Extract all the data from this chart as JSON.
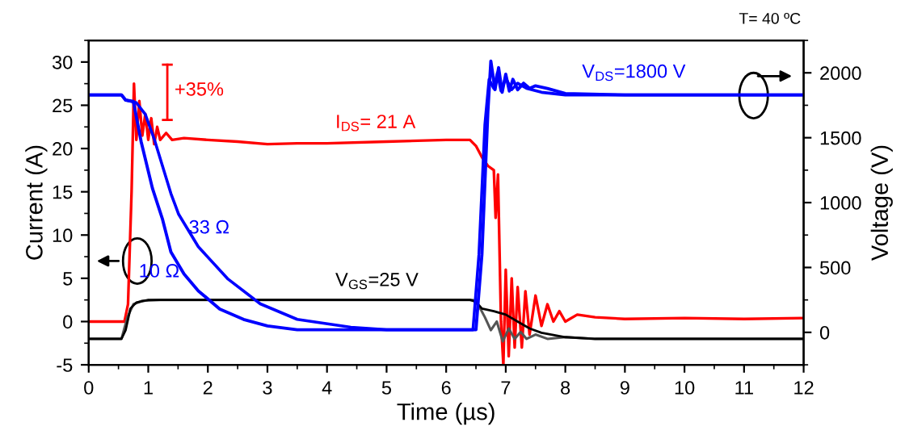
{
  "chart_data": {
    "type": "line",
    "xlabel": "Time (µs)",
    "ylabel": "Current (A)",
    "y2label": "Voltage (V)",
    "xlim": [
      0,
      12
    ],
    "xticks": [
      0,
      1,
      2,
      3,
      4,
      5,
      6,
      7,
      8,
      9,
      10,
      11,
      12
    ],
    "ylim": [
      -5,
      32.5
    ],
    "yticks": [
      -5,
      0,
      5,
      10,
      15,
      20,
      25,
      30
    ],
    "y2lim": [
      -250,
      2250
    ],
    "y2ticks": [
      0,
      500,
      1000,
      1500,
      2000
    ],
    "grid": false,
    "legend": false,
    "marker": "none",
    "line_style": "solid",
    "series": [
      {
        "color": "#0000ff",
        "axis": "y2",
        "x": [
          0,
          0.55,
          0.62,
          0.75,
          0.88,
          1.07,
          1.24,
          1.38,
          1.6,
          1.84,
          2.2,
          2.6,
          3.0,
          3.5,
          4,
          5,
          6,
          6.5,
          6.6,
          6.7,
          6.75,
          6.82,
          6.88,
          6.94,
          7.0,
          7.06,
          7.12,
          7.2,
          7.3,
          7.4,
          7.5,
          7.7,
          8,
          9,
          10,
          11,
          12
        ],
        "values": [
          1830,
          1830,
          1790,
          1780,
          1470,
          1110,
          870,
          620,
          450,
          320,
          180,
          100,
          50,
          20,
          20,
          20,
          20,
          20,
          600,
          1700,
          2090,
          1870,
          2040,
          1850,
          1990,
          1860,
          1950,
          1870,
          1920,
          1880,
          1900,
          1880,
          1840,
          1830,
          1830,
          1830,
          1830
        ]
      },
      {
        "color": "#0000ff",
        "axis": "y2",
        "x": [
          0,
          0.55,
          0.62,
          0.8,
          0.95,
          1.1,
          1.38,
          1.51,
          1.84,
          2.34,
          2.88,
          3.5,
          4.4,
          5,
          6,
          6.45,
          6.55,
          6.65,
          6.72,
          6.8,
          6.86,
          6.92,
          7.0,
          7.1,
          7.2,
          7.35,
          7.6,
          8,
          12
        ],
        "values": [
          1830,
          1830,
          1790,
          1770,
          1680,
          1490,
          1070,
          910,
          660,
          410,
          220,
          100,
          40,
          20,
          20,
          20,
          600,
          1600,
          1950,
          1880,
          2000,
          1860,
          1960,
          1870,
          1920,
          1880,
          1850,
          1830,
          1830
        ]
      },
      {
        "color": "#ff0000",
        "x": [
          0,
          0.6,
          0.66,
          0.72,
          0.76,
          0.8,
          0.85,
          0.9,
          0.95,
          1.0,
          1.05,
          1.1,
          1.15,
          1.2,
          1.3,
          1.4,
          1.6,
          2,
          2.5,
          3,
          3.5,
          4,
          5,
          6,
          6.4,
          6.5,
          6.6,
          6.7,
          6.8,
          6.83,
          6.87,
          6.92,
          6.96,
          7.0,
          7.05,
          7.1,
          7.15,
          7.2,
          7.27,
          7.33,
          7.4,
          7.5,
          7.6,
          7.7,
          7.8,
          7.9,
          8.0,
          8.2,
          8.5,
          9,
          10,
          11,
          12
        ],
        "values": [
          0,
          0,
          2,
          15,
          27.5,
          21,
          25.5,
          21.5,
          24,
          21,
          23.5,
          20.5,
          22.5,
          21,
          21.8,
          21,
          21.2,
          21,
          20.8,
          20.5,
          20.6,
          20.6,
          20.8,
          21,
          21,
          20.3,
          19,
          18,
          17.5,
          12,
          17,
          0,
          -5,
          6,
          -4,
          5,
          -3,
          4,
          -3,
          3.5,
          -1.5,
          3,
          -0.5,
          2,
          0,
          1.2,
          0,
          0.8,
          0.5,
          0.3,
          0.4,
          0.3,
          0.4
        ]
      },
      {
        "color": "#555555",
        "x": [
          0,
          0.55,
          0.65,
          0.75,
          0.9,
          1.2,
          6.45,
          6.55,
          6.65,
          6.75,
          6.85,
          6.95,
          7.05,
          7.15,
          7.25,
          7.35,
          7.5,
          7.7,
          8,
          8.5,
          12
        ],
        "values": [
          -2,
          -2,
          0.5,
          2,
          2.4,
          2.5,
          2.5,
          1.8,
          0.5,
          -1,
          0,
          -2.3,
          -0.8,
          -2,
          -1.2,
          -2,
          -1.5,
          -2,
          -1.8,
          -2,
          -2
        ]
      },
      {
        "color": "#000000",
        "x": [
          0,
          0.55,
          0.62,
          0.7,
          0.8,
          1,
          6.4,
          6.5,
          6.6,
          6.8,
          7.0,
          7.2,
          7.4,
          7.6,
          8,
          8.5,
          12
        ],
        "values": [
          -2,
          -2,
          -1,
          1.5,
          2.2,
          2.5,
          2.5,
          2.3,
          1.5,
          1.2,
          0.8,
          0,
          -0.8,
          -1.3,
          -1.8,
          -2,
          -2
        ]
      }
    ],
    "annotations": [
      "I$_{DS}$= 21 A",
      "+35%",
      "V$_{DS}$=1800 V",
      "33 Ω",
      "10 Ω",
      "V$_{GS}$=25 V",
      "T= 40 ºC"
    ]
  }
}
